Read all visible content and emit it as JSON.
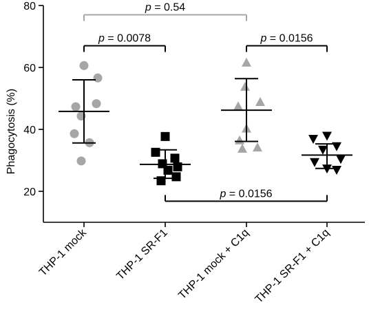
{
  "chart_data": {
    "type": "scatter",
    "ylabel": "Phagocytosis (%)",
    "ylim": [
      15,
      80
    ],
    "yticks": [
      20,
      40,
      60,
      80
    ],
    "categories": [
      "THP-1 mock",
      "THP-1 SR-F1",
      "THP-1 mock + C1q",
      "THP-1 SR-F1 + C1q"
    ],
    "series": [
      {
        "category": "THP-1 mock",
        "marker": "circle",
        "color": "#a6a6a6",
        "mean": 45.8,
        "sd_upper": 56,
        "sd_lower": 35.6,
        "points": [
          60.6,
          56.6,
          47.3,
          48.3,
          44.3,
          38.6,
          35.7,
          29.8
        ]
      },
      {
        "category": "THP-1 SR-F1",
        "marker": "square",
        "color": "#000000",
        "mean": 28.7,
        "sd_upper": 33.4,
        "sd_lower": 24.2,
        "points": [
          37.7,
          32.6,
          30.7,
          28.9,
          27.9,
          26.8,
          24.7,
          23.4
        ]
      },
      {
        "category": "THP-1 mock + C1q",
        "marker": "triangle-up",
        "color": "#a6a6a6",
        "mean": 46.2,
        "sd_upper": 56.4,
        "sd_lower": 36.1,
        "points": [
          61.6,
          53.8,
          48.9,
          47.5,
          40.3,
          36.5,
          34.2,
          33.8
        ]
      },
      {
        "category": "THP-1 SR-F1 + C1q",
        "marker": "triangle-down",
        "color": "#000000",
        "mean": 31.7,
        "sd_upper": 35.3,
        "sd_lower": 27.4,
        "points": [
          37.9,
          36.9,
          34.5,
          33.4,
          30.4,
          29.4,
          27.3,
          26.9
        ]
      }
    ],
    "annotations": [
      {
        "label_prefix": "p",
        "label_value": " = 0.54",
        "from": 0,
        "to": 2,
        "y": 77,
        "color": "#a6a6a6",
        "tick_dir": "down"
      },
      {
        "label_prefix": "p",
        "label_value": " = 0.0078",
        "from": 0,
        "to": 1,
        "y": 67,
        "color": "#000000",
        "tick_dir": "down"
      },
      {
        "label_prefix": "p",
        "label_value": " = 0.0156",
        "from": 2,
        "to": 3,
        "y": 67,
        "color": "#000000",
        "tick_dir": "down"
      },
      {
        "label_prefix": "p",
        "label_value": " = 0.0156",
        "from": 1,
        "to": 3,
        "y": 16.8,
        "color": "#000000",
        "tick_dir": "up"
      }
    ]
  }
}
